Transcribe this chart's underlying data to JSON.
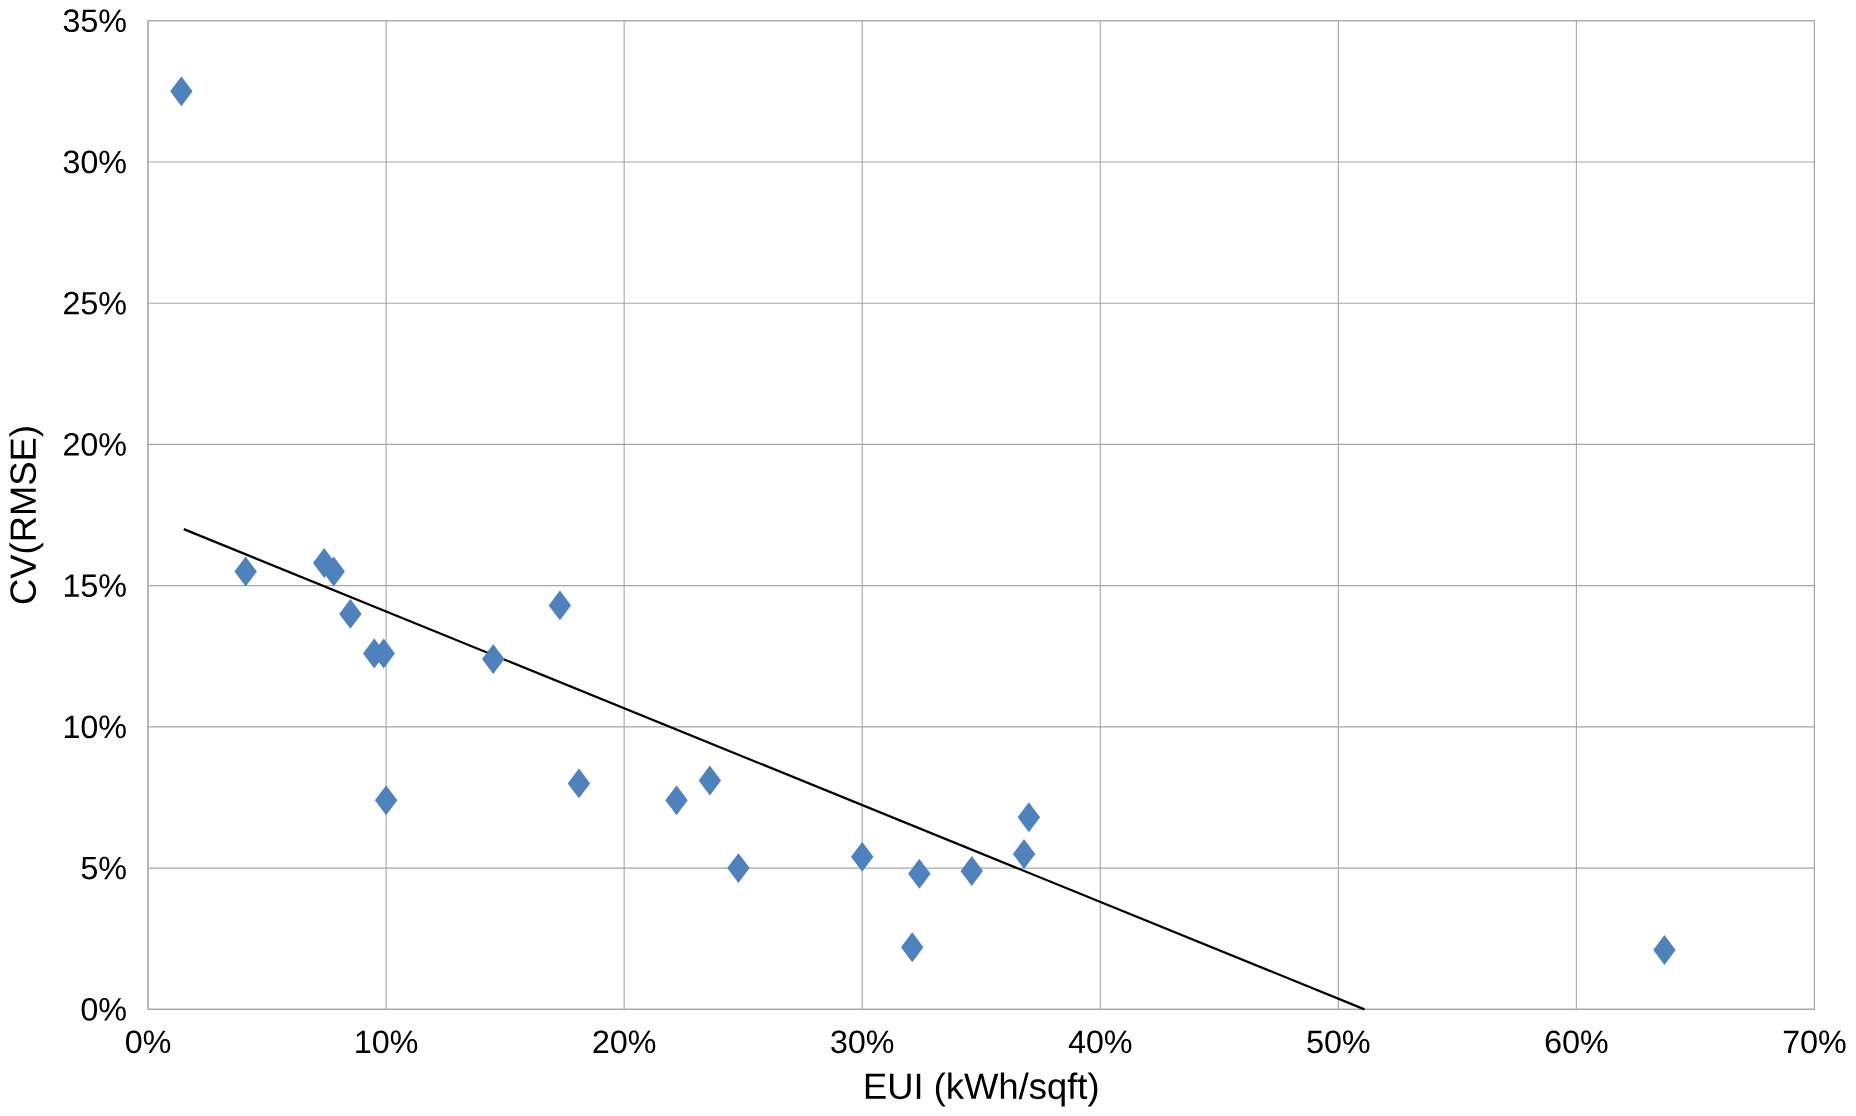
{
  "chart_data": {
    "type": "scatter",
    "xlabel": "EUI (kWh/sqft)",
    "ylabel": "CV(RMSE)",
    "marker": "diamond",
    "grid": true,
    "xlim": [
      0,
      70
    ],
    "ylim": [
      0,
      35
    ],
    "xticks": [
      {
        "value": 0,
        "label": "0%"
      },
      {
        "value": 10,
        "label": "10%"
      },
      {
        "value": 20,
        "label": "20%"
      },
      {
        "value": 30,
        "label": "30%"
      },
      {
        "value": 40,
        "label": "40%"
      },
      {
        "value": 50,
        "label": "50%"
      },
      {
        "value": 60,
        "label": "60%"
      },
      {
        "value": 70,
        "label": "70%"
      }
    ],
    "yticks": [
      {
        "value": 0,
        "label": "0%"
      },
      {
        "value": 5,
        "label": "5%"
      },
      {
        "value": 10,
        "label": "10%"
      },
      {
        "value": 15,
        "label": "15%"
      },
      {
        "value": 20,
        "label": "20%"
      },
      {
        "value": 25,
        "label": "25%"
      },
      {
        "value": 30,
        "label": "30%"
      },
      {
        "value": 35,
        "label": "35%"
      }
    ],
    "series": [
      {
        "color": "#4f81bd",
        "x": [
          1.4,
          4.1,
          7.4,
          7.8,
          8.5,
          9.5,
          9.9,
          10.0,
          14.5,
          17.3,
          18.1,
          22.2,
          23.6,
          24.8,
          30.0,
          32.1,
          32.4,
          34.6,
          36.8,
          37.0,
          63.7
        ],
        "values": [
          32.5,
          15.5,
          15.8,
          15.5,
          14.0,
          12.6,
          12.6,
          7.4,
          12.4,
          14.3,
          8.0,
          7.4,
          8.1,
          5.0,
          5.4,
          2.2,
          4.8,
          4.9,
          5.5,
          6.8,
          2.1
        ]
      },
      {
        "type": "line",
        "color": "#000000",
        "marker": "none",
        "x": [
          1.5,
          51.1
        ],
        "values": [
          17.0,
          0
        ]
      }
    ]
  }
}
